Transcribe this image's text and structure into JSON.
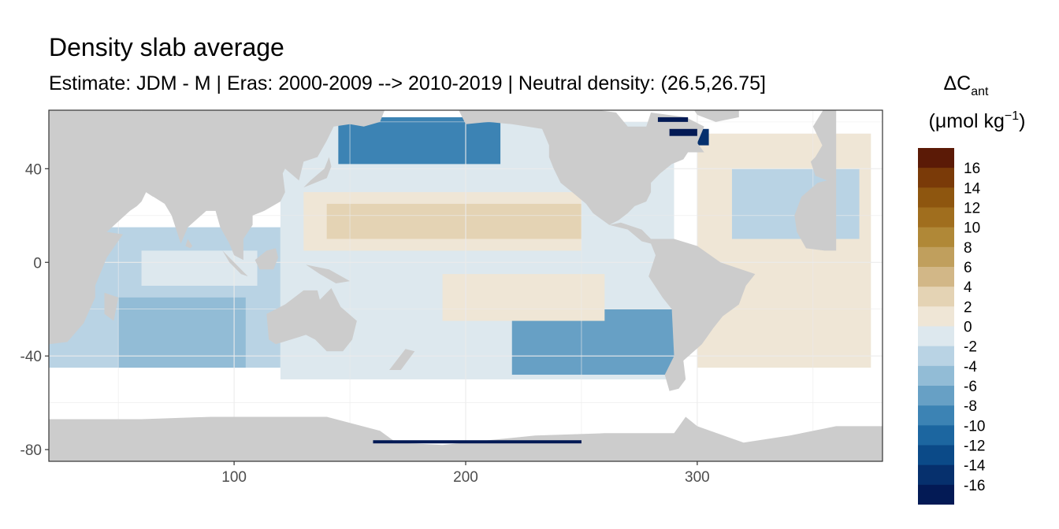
{
  "chart_data": {
    "type": "heatmap",
    "title": "Density slab average",
    "subtitle": "Estimate: JDM - M | Eras: 2000-2009 --> 2010-2019 | Neutral density: (26.5,26.75]",
    "xlabel": "",
    "ylabel": "",
    "xlim": [
      20,
      380
    ],
    "ylim": [
      -85,
      65
    ],
    "x_ticks": [
      100,
      200,
      300
    ],
    "y_ticks": [
      40,
      0,
      -40,
      -80
    ],
    "grid": true,
    "legend": {
      "title_main": "ΔC",
      "title_sub": "ant",
      "title_units_pre": "(μmol kg",
      "title_units_sup": "−1",
      "title_units_post": ")",
      "placement": "right",
      "bins": [
        {
          "label": "16",
          "color": "#5b1a06"
        },
        {
          "label": "14",
          "color": "#7a3a08"
        },
        {
          "label": "12",
          "color": "#8e560f"
        },
        {
          "label": "10",
          "color": "#a06e1e"
        },
        {
          "label": "8",
          "color": "#b08837"
        },
        {
          "label": "6",
          "color": "#c09f5d"
        },
        {
          "label": "4",
          "color": "#d2b787"
        },
        {
          "label": "2",
          "color": "#e4d3b4"
        },
        {
          "label": "0",
          "color": "#efe6d6"
        },
        {
          "label": "-2",
          "color": "#dde8ee"
        },
        {
          "label": "-4",
          "color": "#b9d3e4"
        },
        {
          "label": "-6",
          "color": "#92bcd6"
        },
        {
          "label": "-8",
          "color": "#67a0c5"
        },
        {
          "label": "-10",
          "color": "#3c83b4"
        },
        {
          "label": "-12",
          "color": "#1c66a0"
        },
        {
          "label": "-14",
          "color": "#0b4a88"
        },
        {
          "label": "-16",
          "color": "#06306d"
        }
      ],
      "bottom_color": "#031a55"
    },
    "land_color": "#cccccc",
    "regions": [
      {
        "lon": [
          20,
          120
        ],
        "lat": [
          -45,
          15
        ],
        "value": -3
      },
      {
        "lon": [
          50,
          105
        ],
        "lat": [
          -45,
          -15
        ],
        "value": -5
      },
      {
        "lon": [
          60,
          110
        ],
        "lat": [
          -10,
          5
        ],
        "value": -2
      },
      {
        "lon": [
          120,
          290
        ],
        "lat": [
          -50,
          60
        ],
        "value": -1
      },
      {
        "lon": [
          130,
          250
        ],
        "lat": [
          5,
          30
        ],
        "value": 1
      },
      {
        "lon": [
          140,
          250
        ],
        "lat": [
          10,
          25
        ],
        "value": 3
      },
      {
        "lon": [
          145,
          215
        ],
        "lat": [
          42,
          62
        ],
        "value": -9
      },
      {
        "lon": [
          220,
          290
        ],
        "lat": [
          -48,
          -20
        ],
        "value": -7
      },
      {
        "lon": [
          190,
          260
        ],
        "lat": [
          -25,
          -5
        ],
        "value": 1
      },
      {
        "lon": [
          300,
          375
        ],
        "lat": [
          -45,
          55
        ],
        "value": 1
      },
      {
        "lon": [
          315,
          370
        ],
        "lat": [
          10,
          40
        ],
        "value": -4
      },
      {
        "lon": [
          285,
          305
        ],
        "lat": [
          50,
          57
        ],
        "value": -15
      }
    ]
  }
}
